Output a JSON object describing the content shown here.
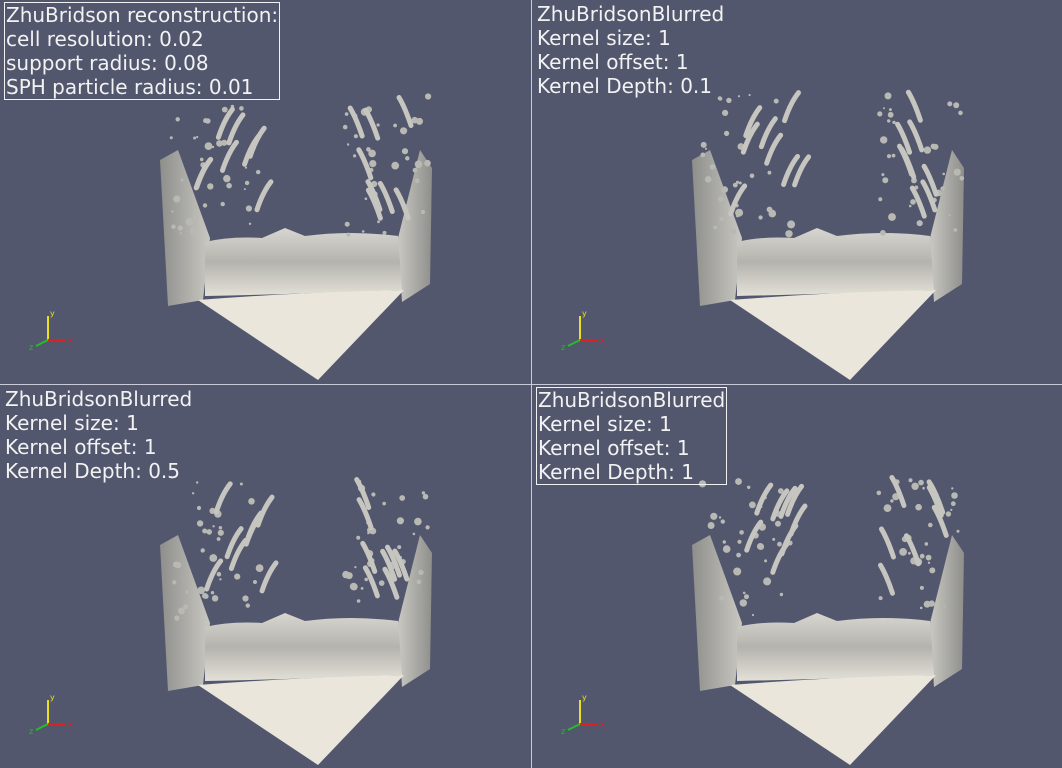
{
  "colors": {
    "background": "#52576e",
    "text": "#f2f2f2",
    "fluid_light": "#eae6db",
    "fluid_shade": "#b9b9b4",
    "axis_x": "#e02020",
    "axis_y": "#e8e020",
    "axis_z": "#20c020"
  },
  "viewports": [
    {
      "boxed": true,
      "lines": [
        "ZhuBridson reconstruction:",
        "cell resolution: 0.02",
        "support radius: 0.08",
        "SPH particle radius: 0.01"
      ]
    },
    {
      "boxed": false,
      "lines": [
        "ZhuBridsonBlurred",
        "Kernel size: 1",
        "Kernel offset: 1",
        "Kernel Depth: 0.1"
      ]
    },
    {
      "boxed": false,
      "lines": [
        "ZhuBridsonBlurred",
        "Kernel size: 1",
        "Kernel offset: 1",
        "Kernel Depth: 0.5"
      ]
    },
    {
      "boxed": true,
      "lines": [
        "ZhuBridsonBlurred",
        "Kernel size: 1",
        "Kernel offset: 1",
        "Kernel Depth: 1"
      ]
    }
  ],
  "axes_labels": {
    "x": "x",
    "y": "y",
    "z": "z"
  }
}
